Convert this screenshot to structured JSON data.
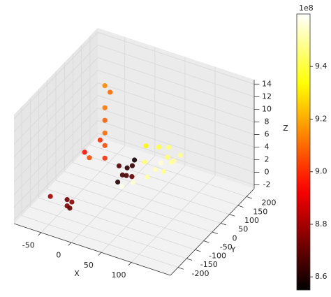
{
  "chart_data": {
    "type": "scatter3d",
    "xlabel": "X",
    "ylabel": "Y",
    "zlabel": "Z",
    "xlim": [
      -95,
      165
    ],
    "ylim": [
      -245,
      245
    ],
    "zlim": [
      -2.6,
      14.7
    ],
    "xticks": [
      -50,
      0,
      50,
      100
    ],
    "yticks": [
      -200,
      -150,
      -100,
      -50,
      0,
      50,
      100,
      150,
      200
    ],
    "zticks": [
      -2,
      0,
      2,
      4,
      6,
      8,
      10,
      12,
      14
    ],
    "grid": true,
    "colormap": "hot",
    "colorbar": {
      "clim": [
        855000000,
        960000000
      ],
      "offset_label": "1e8",
      "ticks": [
        {
          "value": 860000000,
          "label": "8.6"
        },
        {
          "value": 880000000,
          "label": "8.8"
        },
        {
          "value": 900000000,
          "label": "9.0"
        },
        {
          "value": 920000000,
          "label": "9.2"
        },
        {
          "value": 940000000,
          "label": "9.4"
        }
      ]
    },
    "x": [
      -70,
      -45,
      -45,
      -42,
      -40,
      -50,
      -45,
      -25,
      -25,
      -25,
      -25,
      -25,
      -25,
      -22,
      -30,
      5,
      10,
      15,
      10,
      20,
      8,
      15,
      25,
      12,
      30,
      40,
      45,
      50,
      40,
      45,
      50,
      55,
      45,
      50,
      35,
      60,
      30
    ],
    "y": [
      -120,
      -110,
      -110,
      -105,
      -100,
      10,
      20,
      40,
      40,
      40,
      40,
      40,
      40,
      60,
      30,
      10,
      20,
      30,
      0,
      40,
      50,
      60,
      30,
      10,
      80,
      60,
      90,
      120,
      140,
      160,
      180,
      200,
      110,
      150,
      70,
      130,
      20
    ],
    "z": [
      -1,
      -2,
      -1,
      -2.4,
      -1.5,
      3,
      2,
      2,
      4,
      6,
      8,
      10,
      13.5,
      12,
      5,
      0,
      1,
      2,
      3,
      0.5,
      0,
      1.5,
      0,
      -0.5,
      2,
      0.5,
      1,
      0,
      0.5,
      1,
      0,
      0.5,
      4,
      3,
      5,
      1.5,
      4
    ],
    "c": [
      880000000,
      875000000,
      872000000,
      870000000,
      876000000,
      895000000,
      905000000,
      900000000,
      905000000,
      910000000,
      908000000,
      912000000,
      915000000,
      910000000,
      900000000,
      860000000,
      865000000,
      862000000,
      868000000,
      870000000,
      866000000,
      863000000,
      955000000,
      958000000,
      945000000,
      950000000,
      952000000,
      948000000,
      955000000,
      945000000,
      950000000,
      948000000,
      940000000,
      945000000,
      932000000,
      950000000,
      858000000
    ]
  }
}
